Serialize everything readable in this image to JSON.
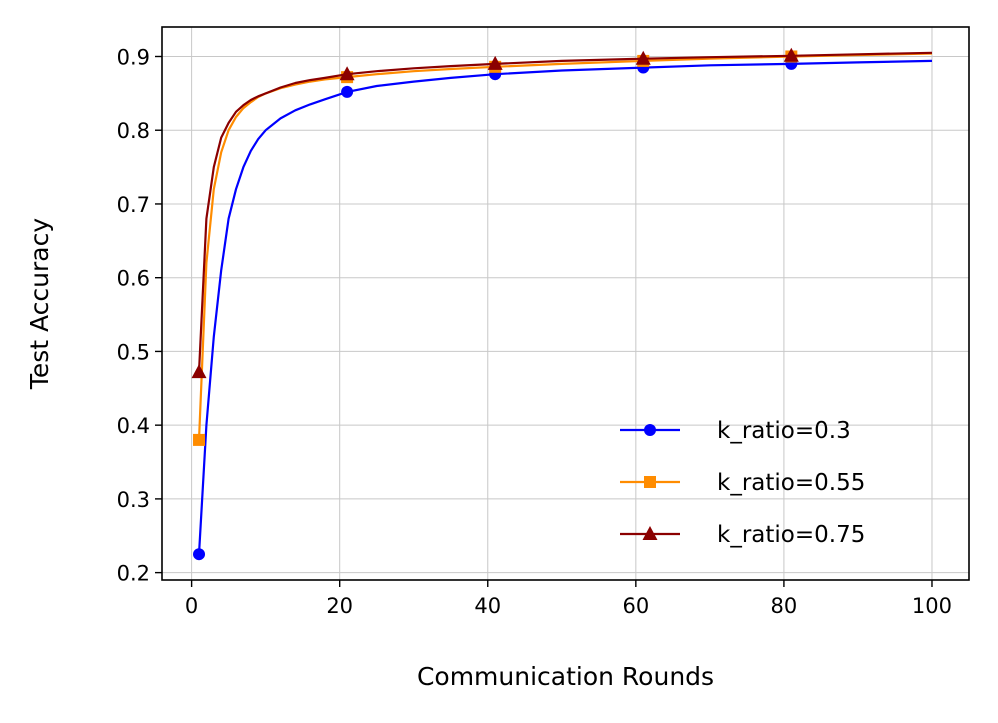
{
  "chart_data": {
    "type": "line",
    "xlabel": "Communication Rounds",
    "ylabel": "Test Accuracy",
    "xlim": [
      -4,
      105
    ],
    "ylim": [
      0.19,
      0.94
    ],
    "xticks": [
      0,
      20,
      40,
      60,
      80,
      100
    ],
    "yticks": [
      0.2,
      0.3,
      0.4,
      0.5,
      0.6,
      0.7,
      0.8,
      0.9
    ],
    "grid": true,
    "legend_position": "lower-right",
    "marker_x": [
      1,
      21,
      41,
      61,
      81
    ],
    "series": [
      {
        "name": "k_ratio=0.3",
        "color": "#0000ff",
        "marker": "circle",
        "x": [
          1,
          2,
          3,
          4,
          5,
          6,
          7,
          8,
          9,
          10,
          12,
          14,
          16,
          18,
          21,
          25,
          30,
          35,
          41,
          50,
          61,
          70,
          81,
          90,
          100
        ],
        "y": [
          0.225,
          0.4,
          0.52,
          0.61,
          0.68,
          0.72,
          0.75,
          0.772,
          0.788,
          0.8,
          0.816,
          0.827,
          0.835,
          0.842,
          0.852,
          0.86,
          0.866,
          0.871,
          0.876,
          0.881,
          0.885,
          0.888,
          0.89,
          0.892,
          0.894
        ]
      },
      {
        "name": "k_ratio=0.55",
        "color": "#ff8c00",
        "marker": "square",
        "x": [
          1,
          2,
          3,
          4,
          5,
          6,
          7,
          8,
          9,
          10,
          12,
          14,
          16,
          18,
          21,
          25,
          30,
          35,
          41,
          50,
          61,
          70,
          81,
          90,
          100
        ],
        "y": [
          0.38,
          0.62,
          0.72,
          0.77,
          0.8,
          0.818,
          0.83,
          0.838,
          0.845,
          0.85,
          0.857,
          0.862,
          0.866,
          0.869,
          0.872,
          0.876,
          0.88,
          0.883,
          0.886,
          0.89,
          0.894,
          0.897,
          0.9,
          0.902,
          0.904
        ]
      },
      {
        "name": "k_ratio=0.75",
        "color": "#8b0000",
        "marker": "triangle",
        "x": [
          1,
          2,
          3,
          4,
          5,
          6,
          7,
          8,
          9,
          10,
          12,
          14,
          16,
          18,
          21,
          25,
          30,
          35,
          41,
          50,
          61,
          70,
          81,
          90,
          100
        ],
        "y": [
          0.472,
          0.68,
          0.75,
          0.79,
          0.81,
          0.825,
          0.834,
          0.841,
          0.846,
          0.85,
          0.858,
          0.864,
          0.868,
          0.871,
          0.876,
          0.88,
          0.884,
          0.887,
          0.89,
          0.894,
          0.897,
          0.899,
          0.901,
          0.903,
          0.905
        ]
      }
    ]
  }
}
